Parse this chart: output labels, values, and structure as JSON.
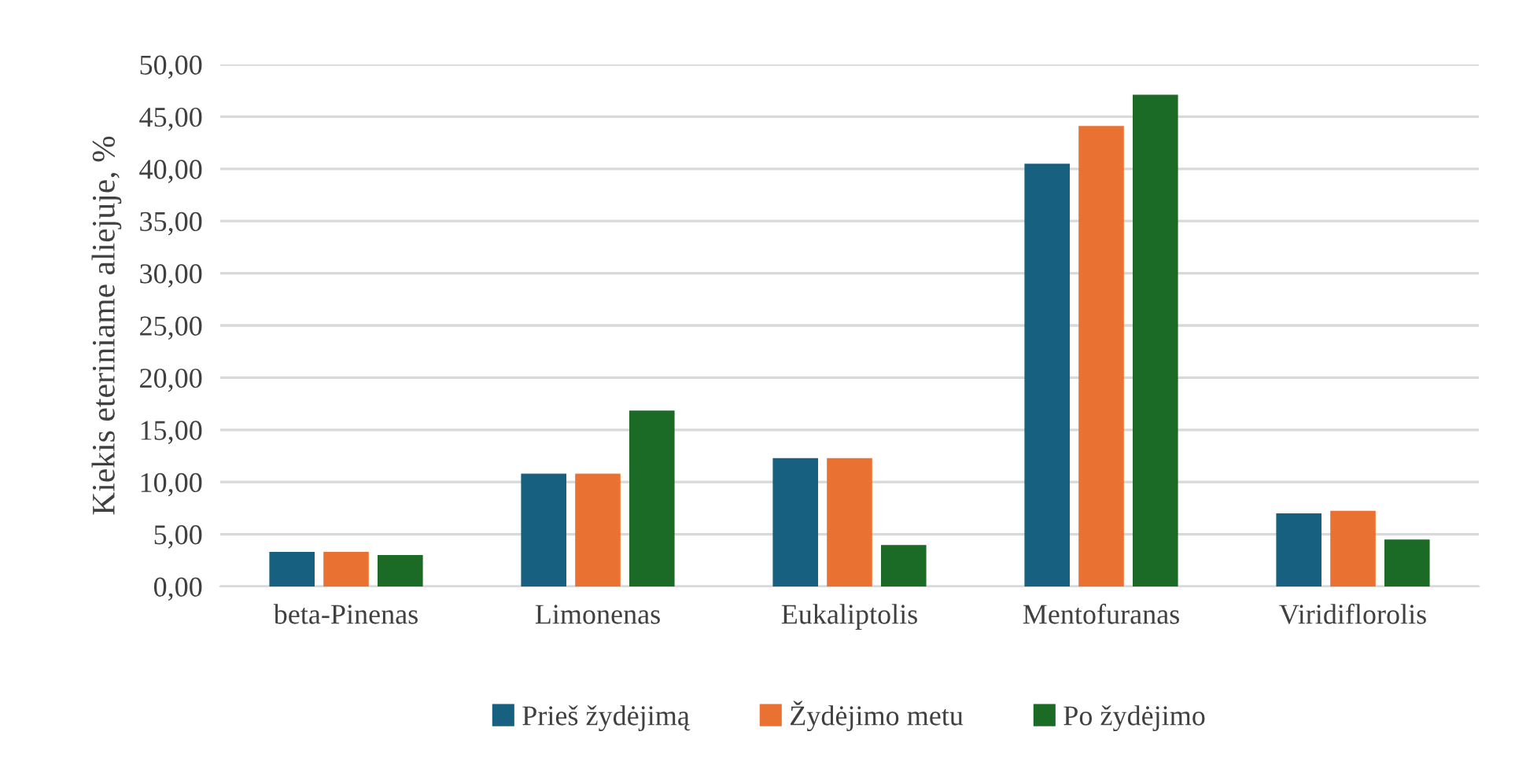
{
  "chart_data": {
    "type": "bar",
    "ylabel": "Kiekis eteriniame aliejuje, %",
    "categories": [
      "beta-Pinenas",
      "Limonenas",
      "Eukaliptolis",
      "Mentofuranas",
      "Viridiflorolis"
    ],
    "series": [
      {
        "name": "Prieš žydėjimą",
        "color": "#17607f",
        "values": [
          3.32,
          10.8,
          12.3,
          40.5,
          7.0
        ]
      },
      {
        "name": "Žydėjimo metu",
        "color": "#e97132",
        "values": [
          3.32,
          10.8,
          12.3,
          44.1,
          7.24
        ]
      },
      {
        "name": "Po žydėjimo",
        "color": "#1b6b26",
        "values": [
          3.02,
          16.85,
          3.97,
          47.1,
          4.5
        ]
      }
    ],
    "ylim": [
      0,
      50
    ],
    "yticks": [
      {
        "value": 0,
        "label": "0,00"
      },
      {
        "value": 5,
        "label": "5,00"
      },
      {
        "value": 10,
        "label": "10,00"
      },
      {
        "value": 15,
        "label": "15,00"
      },
      {
        "value": 20,
        "label": "20,00"
      },
      {
        "value": 25,
        "label": "25,00"
      },
      {
        "value": 30,
        "label": "30,00"
      },
      {
        "value": 35,
        "label": "35,00"
      },
      {
        "value": 40,
        "label": "40,00"
      },
      {
        "value": 45,
        "label": "45,00"
      },
      {
        "value": 50,
        "label": "50,00"
      }
    ],
    "grid": "y",
    "legend": "bottom"
  }
}
